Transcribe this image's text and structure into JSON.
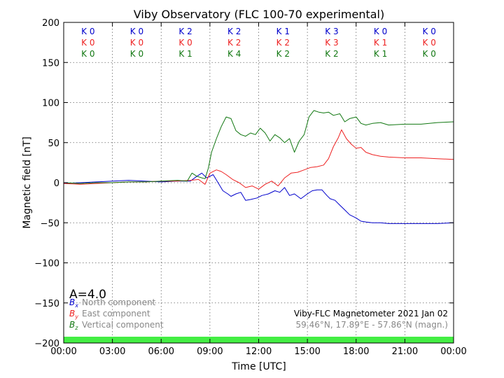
{
  "chart_data": {
    "type": "line",
    "title": "Viby Observatory (FLC 100-70 experimental)",
    "xlabel": "Time [UTC]",
    "ylabel": "Magnetic field [nT]",
    "xlim": [
      0,
      24
    ],
    "ylim": [
      -200,
      200
    ],
    "x_tick_labels": [
      "00:00",
      "03:00",
      "06:00",
      "09:00",
      "12:00",
      "15:00",
      "18:00",
      "21:00",
      "00:00"
    ],
    "y_tick_labels": [
      "200",
      "150",
      "100",
      "50",
      "0",
      "−50",
      "−100",
      "−150",
      "−200"
    ],
    "grid": true,
    "activity_index": "A=4.0",
    "station": "Viby-FLC Magnetometer 2021 Jan 02",
    "coordinates": "59.46°N, 17.89°E - 57.86°N (magn.)",
    "legend_position": "bottom-left",
    "legend": [
      {
        "symbol": "B",
        "subscript": "x",
        "label": "North component",
        "color": "#0000cc"
      },
      {
        "symbol": "B",
        "subscript": "y",
        "label": "East component",
        "color": "#ee2222"
      },
      {
        "symbol": "B",
        "subscript": "z",
        "label": "Vertical component",
        "color": "#117711"
      }
    ],
    "k_indices": {
      "north": [
        "K 0",
        "K 0",
        "K 2",
        "K 2",
        "K 1",
        "K 3",
        "K 0",
        "K 0"
      ],
      "east": [
        "K 0",
        "K 0",
        "K 0",
        "K 2",
        "K 2",
        "K 3",
        "K 1",
        "K 0"
      ],
      "vertical": [
        "K 0",
        "K 0",
        "K 1",
        "K 4",
        "K 2",
        "K 2",
        "K 1",
        "K 0"
      ]
    },
    "series": [
      {
        "key": "north",
        "color": "#0000cc",
        "x": [
          0,
          1,
          2,
          3,
          4,
          5,
          6,
          7,
          7.8,
          8.2,
          8.5,
          8.8,
          9.2,
          9.5,
          9.8,
          10.1,
          10.3,
          10.6,
          10.9,
          11.2,
          11.5,
          11.9,
          12.2,
          12.6,
          13,
          13.3,
          13.6,
          13.9,
          14.2,
          14.6,
          15,
          15.3,
          15.6,
          15.9,
          16.2,
          16.4,
          16.7,
          17,
          17.3,
          17.6,
          18,
          18.3,
          18.6,
          19,
          19.5,
          20,
          21,
          22,
          23,
          24
        ],
        "y": [
          -1,
          0,
          1,
          2,
          3,
          2,
          1,
          2,
          2,
          8,
          12,
          6,
          10,
          0,
          -10,
          -14,
          -17,
          -14,
          -12,
          -22,
          -21,
          -19,
          -16,
          -14,
          -10,
          -12,
          -6,
          -16,
          -14,
          -20,
          -14,
          -10,
          -9,
          -9,
          -16,
          -20,
          -22,
          -28,
          -34,
          -40,
          -44,
          -48,
          -49,
          -50,
          -50,
          -51,
          -51,
          -51,
          -51,
          -50
        ]
      },
      {
        "key": "east",
        "color": "#ee2222",
        "x": [
          0,
          1,
          2,
          3,
          4,
          5,
          6,
          7,
          7.8,
          8.3,
          8.7,
          9.0,
          9.4,
          9.7,
          10.0,
          10.4,
          10.8,
          11.2,
          11.6,
          12.0,
          12.4,
          12.8,
          13.2,
          13.6,
          14.0,
          14.4,
          14.8,
          15.2,
          15.6,
          16.0,
          16.3,
          16.6,
          16.9,
          17.1,
          17.4,
          17.7,
          18.0,
          18.3,
          18.6,
          19.0,
          19.5,
          20,
          21,
          22,
          23,
          24
        ],
        "y": [
          -1,
          -2,
          -1,
          0,
          1,
          1,
          2,
          2,
          3,
          4,
          -2,
          12,
          16,
          14,
          10,
          4,
          0,
          -6,
          -4,
          -8,
          -2,
          2,
          -4,
          6,
          12,
          13,
          16,
          19,
          20,
          22,
          30,
          45,
          56,
          66,
          55,
          48,
          43,
          44,
          38,
          35,
          33,
          32,
          31,
          31,
          30,
          29
        ]
      },
      {
        "key": "vertical",
        "color": "#117711",
        "x": [
          0,
          1,
          2,
          3,
          4,
          5,
          6,
          7,
          7.6,
          7.9,
          8.2,
          8.5,
          8.7,
          8.9,
          9.1,
          9.4,
          9.7,
          10.0,
          10.3,
          10.6,
          10.9,
          11.2,
          11.5,
          11.8,
          12.1,
          12.4,
          12.7,
          13.0,
          13.3,
          13.6,
          13.9,
          14.2,
          14.5,
          14.8,
          15.1,
          15.4,
          15.7,
          16.0,
          16.3,
          16.6,
          17.0,
          17.3,
          17.6,
          18.0,
          18.3,
          18.6,
          19.0,
          19.5,
          20,
          21,
          22,
          23,
          24
        ],
        "y": [
          0,
          -1,
          0,
          0,
          1,
          1,
          2,
          3,
          2,
          12,
          8,
          6,
          5,
          18,
          38,
          55,
          70,
          82,
          80,
          65,
          60,
          58,
          62,
          60,
          68,
          62,
          52,
          60,
          56,
          50,
          55,
          38,
          52,
          60,
          82,
          90,
          88,
          87,
          88,
          84,
          86,
          76,
          80,
          82,
          74,
          72,
          74,
          75,
          72,
          73,
          73,
          75,
          76
        ]
      }
    ]
  }
}
